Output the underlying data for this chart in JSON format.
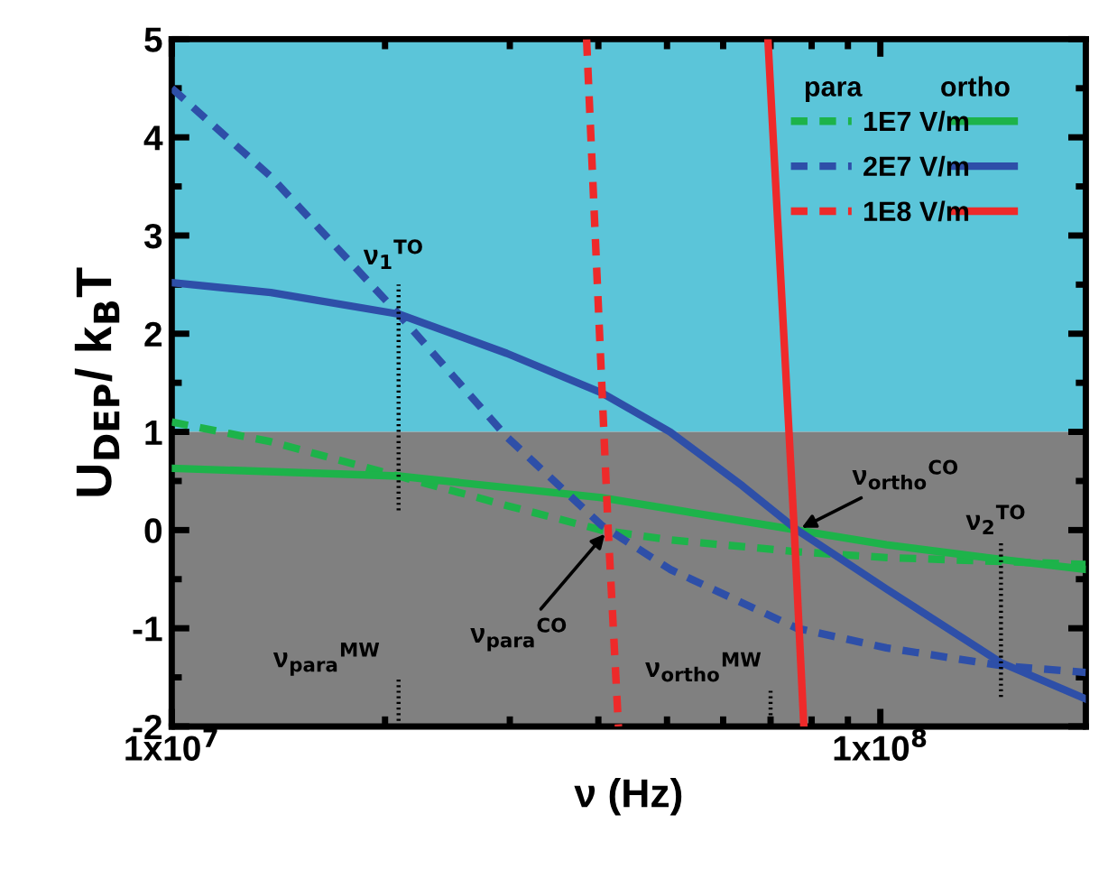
{
  "chart_data": {
    "type": "line",
    "xlabel": "ν (Hz)",
    "ylabel": "U$_{DEP}$/ k$_{B}$T",
    "log": "x",
    "xlim": [
      10000000.0,
      195000000.0
    ],
    "xticks": [
      {
        "value": 10000000.0,
        "label": "1x10$^{7}$"
      },
      {
        "value": 100000000.0,
        "label": "1x10$^{8}$"
      }
    ],
    "ylim": [
      -2,
      5
    ],
    "yticks": [
      -2,
      -1,
      0,
      1,
      2,
      3,
      4,
      5
    ],
    "grid": false,
    "legend": "top right",
    "bands": [
      {
        "axis": "y",
        "from": 1,
        "to": 5,
        "color": "#5bc5d9"
      },
      {
        "axis": "y",
        "from": -2,
        "to": 1,
        "color": "#808080"
      }
    ],
    "series": [
      {
        "name": "1E7 V/m",
        "color": "#1db34a",
        "line_style": "dashed",
        "x": [
          10000000.0,
          13800000.0,
          20900000.0,
          29700000.0,
          40400000.0,
          50500000.0,
          76300000.0,
          102000000.0,
          148000000.0,
          195000000.0
        ],
        "values": [
          1.1,
          0.9,
          0.55,
          0.25,
          0.0,
          -0.1,
          -0.22,
          -0.28,
          -0.32,
          -0.35
        ]
      },
      {
        "color": "#1db34a",
        "line_style": "solid",
        "x": [
          10000000.0,
          20900000.0,
          40400000.0,
          76300000.0,
          102000000.0,
          148000000.0,
          195000000.0
        ],
        "values": [
          0.63,
          0.55,
          0.33,
          0.0,
          -0.15,
          -0.3,
          -0.4
        ]
      },
      {
        "name": "2E7 V/m",
        "color": "#2e4fa8",
        "line_style": "dashed",
        "x": [
          10000000.0,
          13800000.0,
          20900000.0,
          29700000.0,
          40400000.0,
          50500000.0,
          76300000.0,
          102000000.0,
          148000000.0,
          195000000.0
        ],
        "values": [
          4.5,
          3.6,
          2.2,
          0.95,
          0.05,
          -0.4,
          -1.0,
          -1.2,
          -1.38,
          -1.45
        ]
      },
      {
        "color": "#2e4fa8",
        "line_style": "solid",
        "x": [
          10000000.0,
          13800000.0,
          20900000.0,
          29700000.0,
          40400000.0,
          50500000.0,
          63900000.0,
          76300000.0,
          102000000.0,
          148000000.0,
          195000000.0
        ],
        "values": [
          2.52,
          2.42,
          2.2,
          1.8,
          1.4,
          1.0,
          0.45,
          0.0,
          -0.6,
          -1.35,
          -1.72
        ]
      },
      {
        "name": "1E8 V/m",
        "color": "#ee2a2a",
        "line_style": "dashed",
        "x": [
          38500000.0,
          41300000.0,
          42700000.0
        ],
        "values": [
          5,
          0,
          -2
        ]
      },
      {
        "color": "#ee2a2a",
        "line_style": "solid",
        "x": [
          69400000.0,
          75600000.0,
          78000000.0
        ],
        "values": [
          5,
          0,
          -2
        ]
      },
      {
        "color": "#000000",
        "line_style": "dotted",
        "x": [
          20900000.0,
          20900000.0
        ],
        "values": [
          0.2,
          2.5
        ]
      },
      {
        "color": "#000000",
        "line_style": "dotted",
        "x": [
          148000000.0,
          148000000.0
        ],
        "values": [
          -1.7,
          -0.1
        ]
      },
      {
        "color": "#000000",
        "line_style": "dotted",
        "x": [
          20900000.0,
          20900000.0
        ],
        "values": [
          -2,
          -1.5
        ]
      },
      {
        "color": "#000000",
        "line_style": "dotted",
        "x": [
          70000000.0,
          70000000.0
        ],
        "values": [
          -2,
          -1.6
        ]
      }
    ],
    "annotations": [
      {
        "text": "ν$_{1}$$^{TO}$",
        "x": 20900000.0,
        "y": 2.5
      },
      {
        "text": "ν$_{2}$$^{TO}$",
        "x": 148000000.0,
        "y": -0.1
      },
      {
        "text": "ν$_{para}$$^{CO}$",
        "x": 41300000.0,
        "y": 0
      },
      {
        "text": "ν$_{ortho}$$^{CO}$",
        "x": 76300000.0,
        "y": 0
      },
      {
        "text": "ν$_{para}$$^{MW}$",
        "x": 20900000.0,
        "y": -1.5
      },
      {
        "text": "ν$_{ortho}$$^{MW}$",
        "x": 70000000.0,
        "y": -1.6
      },
      "para",
      "ortho"
    ]
  }
}
